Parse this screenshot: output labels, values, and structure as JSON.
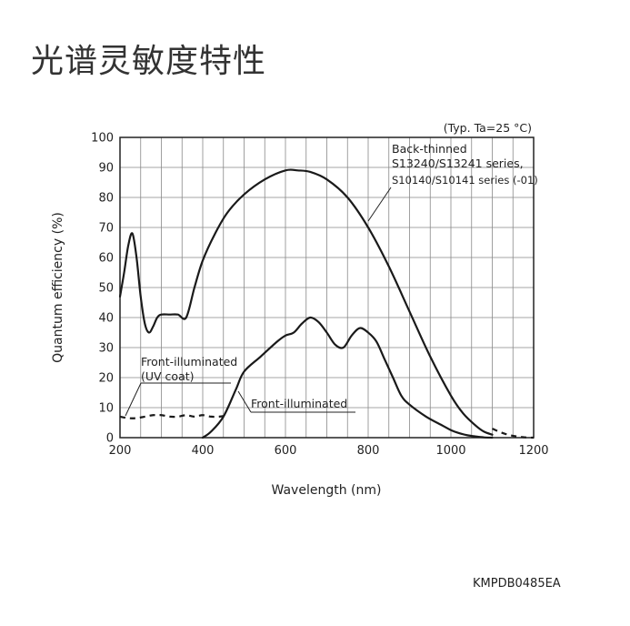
{
  "page": {
    "title": "光谱灵敏度特性",
    "figure_code": "KMPDB0485EA"
  },
  "chart_data": {
    "type": "line",
    "condition_note": "(Typ. Ta=25 °C)",
    "xlabel": "Wavelength (nm)",
    "ylabel": "Quantum efficiency (%)",
    "xlim": [
      200,
      1200
    ],
    "ylim": [
      0,
      100
    ],
    "x_ticks": [
      200,
      400,
      600,
      800,
      1000,
      1200
    ],
    "y_ticks": [
      0,
      10,
      20,
      30,
      40,
      50,
      60,
      70,
      80,
      90,
      100
    ],
    "grid": true,
    "series": [
      {
        "name": "Back-thinned S13240/S13241 series, S10140/S10141 series (-01)",
        "label_lines": [
          "Back-thinned",
          "S13240/S13241 series,",
          "S10140/S10141 series (-01)"
        ],
        "style": "solid",
        "x": [
          200,
          210,
          220,
          230,
          240,
          250,
          260,
          270,
          280,
          290,
          300,
          320,
          340,
          360,
          380,
          400,
          430,
          460,
          500,
          550,
          600,
          630,
          660,
          700,
          750,
          800,
          850,
          900,
          950,
          1000,
          1030,
          1060,
          1080,
          1100
        ],
        "y": [
          47,
          55,
          64,
          68,
          60,
          47,
          38,
          35,
          37,
          40,
          41,
          41,
          41,
          40,
          50,
          59,
          68,
          75,
          81,
          86,
          89,
          89,
          88.5,
          86,
          80,
          70,
          57,
          42,
          27,
          14,
          8,
          4,
          2,
          1
        ]
      },
      {
        "name": "Back-thinned (extension)",
        "style": "dashed",
        "x": [
          1100,
          1120,
          1140,
          1160,
          1180,
          1200
        ],
        "y": [
          3,
          1.8,
          0.9,
          0.4,
          0.1,
          0
        ]
      },
      {
        "name": "Front-illuminated",
        "label_lines": [
          "Front-illuminated"
        ],
        "style": "solid",
        "x": [
          400,
          420,
          450,
          480,
          500,
          540,
          580,
          600,
          620,
          640,
          660,
          680,
          700,
          720,
          740,
          760,
          780,
          800,
          820,
          840,
          860,
          880,
          900,
          940,
          980,
          1000,
          1020,
          1040,
          1060,
          1080,
          1100
        ],
        "y": [
          0,
          2,
          7,
          16,
          22,
          27,
          32,
          34,
          35,
          38,
          40,
          38.5,
          35,
          31,
          30,
          34,
          36.5,
          35,
          32,
          26,
          20,
          14,
          11,
          7,
          4,
          2.5,
          1.5,
          0.8,
          0.4,
          0.1,
          0
        ]
      },
      {
        "name": "Front-illuminated (UV coat)",
        "label_lines": [
          "Front-illuminated",
          "(UV coat)"
        ],
        "style": "dashed",
        "x": [
          200,
          220,
          240,
          260,
          280,
          300,
          320,
          340,
          360,
          380,
          400,
          420,
          440,
          460
        ],
        "y": [
          7,
          6.5,
          6.5,
          7,
          7.5,
          7.5,
          7,
          7,
          7.5,
          7,
          7.5,
          7,
          7,
          7.5
        ]
      }
    ]
  }
}
